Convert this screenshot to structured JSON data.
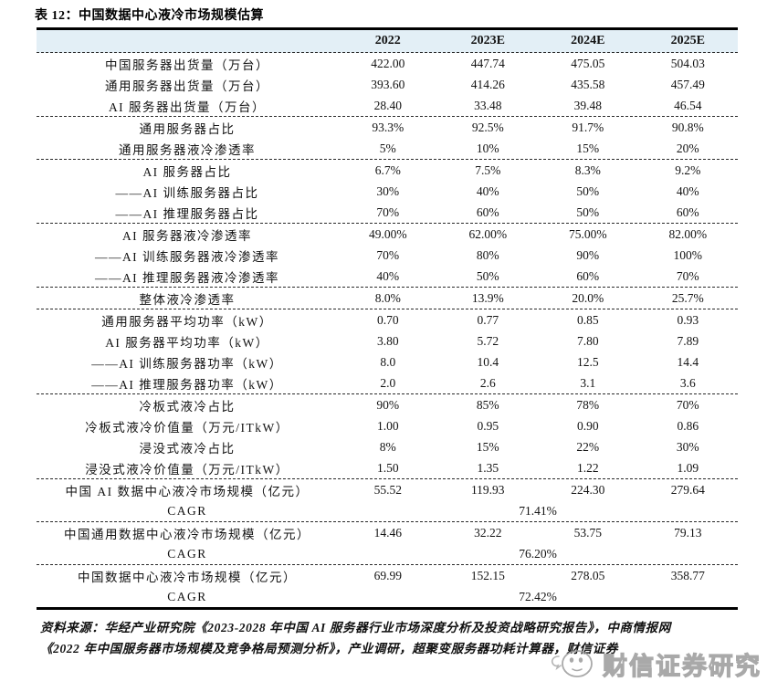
{
  "title": "表 12：中国数据中心液冷市场规模估算",
  "table": {
    "header": {
      "label": "",
      "years": [
        "2022",
        "2023E",
        "2024E",
        "2025E"
      ]
    },
    "sections": [
      {
        "rows": [
          {
            "label": "中国服务器出货量（万台）",
            "values": [
              "422.00",
              "447.74",
              "475.05",
              "504.03"
            ]
          },
          {
            "label": "通用服务器出货量（万台）",
            "values": [
              "393.60",
              "414.26",
              "435.58",
              "457.49"
            ]
          },
          {
            "label": "AI 服务器出货量（万台）",
            "values": [
              "28.40",
              "33.48",
              "39.48",
              "46.54"
            ]
          }
        ]
      },
      {
        "rows": [
          {
            "label": "通用服务器占比",
            "values": [
              "93.3%",
              "92.5%",
              "91.7%",
              "90.8%"
            ]
          },
          {
            "label": "通用服务器液冷渗透率",
            "values": [
              "5%",
              "10%",
              "15%",
              "20%"
            ]
          }
        ]
      },
      {
        "rows": [
          {
            "label": "AI 服务器占比",
            "values": [
              "6.7%",
              "7.5%",
              "8.3%",
              "9.2%"
            ]
          },
          {
            "label": "——AI 训练服务器占比",
            "values": [
              "30%",
              "40%",
              "50%",
              "40%"
            ]
          },
          {
            "label": "——AI 推理服务器占比",
            "values": [
              "70%",
              "60%",
              "50%",
              "60%"
            ]
          }
        ]
      },
      {
        "rows": [
          {
            "label": "AI 服务器液冷渗透率",
            "values": [
              "49.00%",
              "62.00%",
              "75.00%",
              "82.00%"
            ]
          },
          {
            "label": "——AI 训练服务器液冷渗透率",
            "values": [
              "70%",
              "80%",
              "90%",
              "100%"
            ]
          },
          {
            "label": "——AI 推理服务器液冷渗透率",
            "values": [
              "40%",
              "50%",
              "60%",
              "70%"
            ]
          }
        ]
      },
      {
        "rows": [
          {
            "label": "整体液冷渗透率",
            "values": [
              "8.0%",
              "13.9%",
              "20.0%",
              "25.7%"
            ]
          }
        ]
      },
      {
        "rows": [
          {
            "label": "通用服务器平均功率（kW）",
            "values": [
              "0.70",
              "0.77",
              "0.85",
              "0.93"
            ]
          },
          {
            "label": "AI 服务器平均功率（kW）",
            "values": [
              "3.80",
              "5.72",
              "7.80",
              "7.89"
            ]
          },
          {
            "label": "——AI 训练服务器功率（kW）",
            "values": [
              "8.0",
              "10.4",
              "12.5",
              "14.4"
            ]
          },
          {
            "label": "——AI 推理服务器功率（kW）",
            "values": [
              "2.0",
              "2.6",
              "3.1",
              "3.6"
            ]
          }
        ]
      },
      {
        "rows": [
          {
            "label": "冷板式液冷占比",
            "values": [
              "90%",
              "85%",
              "78%",
              "70%"
            ]
          },
          {
            "label": "冷板式液冷价值量（万元/ITkW）",
            "values": [
              "1.00",
              "0.95",
              "0.90",
              "0.86"
            ]
          },
          {
            "label": "浸没式液冷占比",
            "values": [
              "8%",
              "15%",
              "22%",
              "30%"
            ]
          },
          {
            "label": "浸没式液冷价值量（万元/ITkW）",
            "values": [
              "1.50",
              "1.35",
              "1.22",
              "1.09"
            ]
          }
        ]
      },
      {
        "rows": [
          {
            "label": "中国 AI 数据中心液冷市场规模（亿元）",
            "values": [
              "55.52",
              "119.93",
              "224.30",
              "279.64"
            ]
          },
          {
            "label": "CAGR",
            "span_value": "71.41%"
          }
        ]
      },
      {
        "rows": [
          {
            "label": "中国通用数据中心液冷市场规模（亿元）",
            "values": [
              "14.46",
              "32.22",
              "53.75",
              "79.13"
            ]
          },
          {
            "label": "CAGR",
            "span_value": "76.20%"
          }
        ]
      },
      {
        "rows": [
          {
            "label": "中国数据中心液冷市场规模（亿元）",
            "values": [
              "69.99",
              "152.15",
              "278.05",
              "358.77"
            ]
          },
          {
            "label": "CAGR",
            "span_value": "72.42%"
          }
        ]
      }
    ]
  },
  "footer": {
    "source_line1": "资料来源：华经产业研究院《2023-2028 年中国 AI 服务器行业市场深度分析及投资战略研究报告》，中商情报网",
    "source_line2": "《2022 年中国服务器市场规模及竞争格局预测分析》，产业调研，超聚变服务器功耗计算器，财信证券"
  },
  "watermark": {
    "label": "财信证券研究",
    "icon": "mascot-logo-icon"
  },
  "colors": {
    "header_bg": "#e3eff6",
    "rule_color": "#000000",
    "watermark_gray": "#9b9b9b"
  }
}
